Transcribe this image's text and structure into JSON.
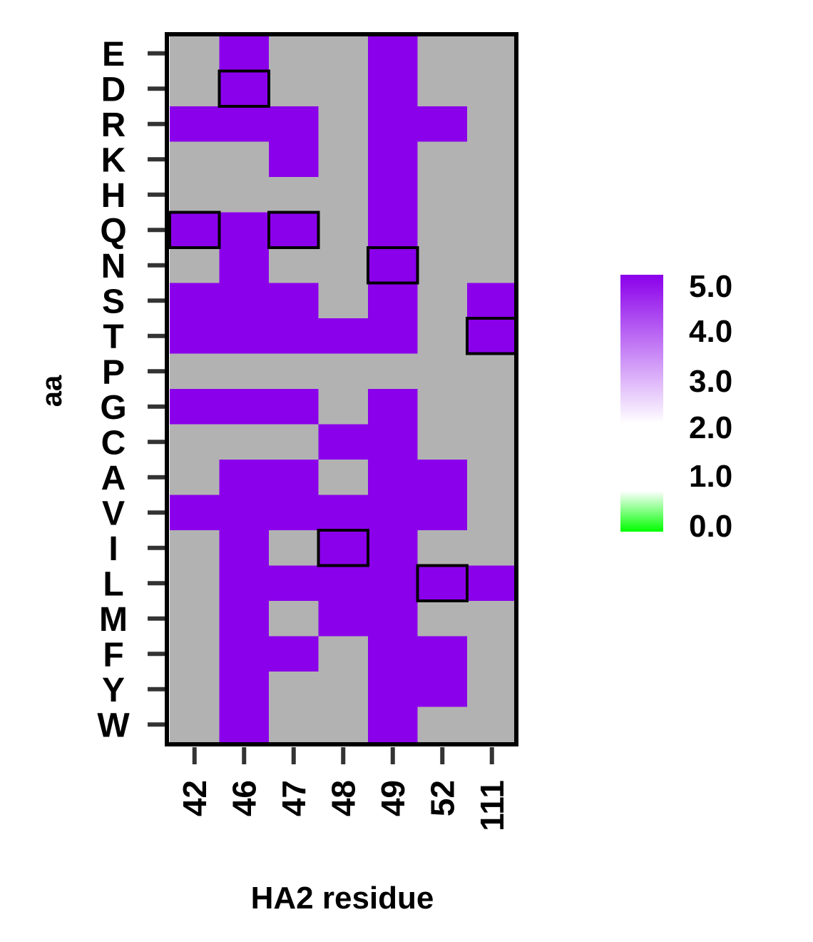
{
  "chart_data": {
    "type": "heatmap",
    "xlabel": "HA2 residue",
    "ylabel": "aa",
    "x_categories": [
      "42",
      "46",
      "47",
      "48",
      "49",
      "52",
      "111"
    ],
    "y_categories": [
      "E",
      "D",
      "R",
      "K",
      "H",
      "Q",
      "N",
      "S",
      "T",
      "P",
      "G",
      "C",
      "A",
      "V",
      "I",
      "L",
      "M",
      "F",
      "Y",
      "W"
    ],
    "values": [
      [
        null,
        5.0,
        null,
        null,
        5.0,
        null,
        null
      ],
      [
        null,
        5.0,
        null,
        null,
        5.0,
        null,
        null
      ],
      [
        5.0,
        5.0,
        5.0,
        null,
        5.0,
        5.0,
        null
      ],
      [
        null,
        null,
        5.0,
        null,
        5.0,
        null,
        null
      ],
      [
        null,
        null,
        null,
        null,
        5.0,
        null,
        null
      ],
      [
        5.0,
        5.0,
        5.0,
        null,
        5.0,
        null,
        null
      ],
      [
        null,
        5.0,
        null,
        null,
        5.0,
        null,
        null
      ],
      [
        5.0,
        5.0,
        5.0,
        null,
        5.0,
        null,
        5.0
      ],
      [
        5.0,
        5.0,
        5.0,
        5.0,
        5.0,
        null,
        5.0
      ],
      [
        null,
        null,
        null,
        null,
        null,
        null,
        null
      ],
      [
        5.0,
        5.0,
        5.0,
        null,
        5.0,
        null,
        null
      ],
      [
        null,
        null,
        null,
        5.0,
        5.0,
        null,
        null
      ],
      [
        null,
        5.0,
        5.0,
        null,
        5.0,
        5.0,
        null
      ],
      [
        5.0,
        5.0,
        5.0,
        5.0,
        5.0,
        5.0,
        null
      ],
      [
        null,
        5.0,
        null,
        5.0,
        5.0,
        null,
        null
      ],
      [
        null,
        5.0,
        5.0,
        5.0,
        5.0,
        5.0,
        5.0
      ],
      [
        null,
        5.0,
        null,
        5.0,
        5.0,
        null,
        null
      ],
      [
        null,
        5.0,
        5.0,
        null,
        5.0,
        5.0,
        null
      ],
      [
        null,
        5.0,
        null,
        null,
        5.0,
        5.0,
        null
      ],
      [
        null,
        5.0,
        null,
        null,
        5.0,
        null,
        null
      ]
    ],
    "boxed_cells": [
      {
        "x": "46",
        "y": "D"
      },
      {
        "x": "42",
        "y": "Q"
      },
      {
        "x": "47",
        "y": "Q"
      },
      {
        "x": "49",
        "y": "N"
      },
      {
        "x": "111",
        "y": "T"
      },
      {
        "x": "48",
        "y": "I"
      },
      {
        "x": "52",
        "y": "L"
      }
    ],
    "missing_color": "#b2b2b2",
    "colorbar": {
      "ticks": [
        "5.0",
        "4.0",
        "3.0",
        "2.0",
        "1.0",
        "0.0"
      ],
      "range": [
        0,
        5
      ],
      "high_color": "#8b00eb",
      "mid_color": "#ffffff",
      "low_color": "#00ff00"
    }
  }
}
